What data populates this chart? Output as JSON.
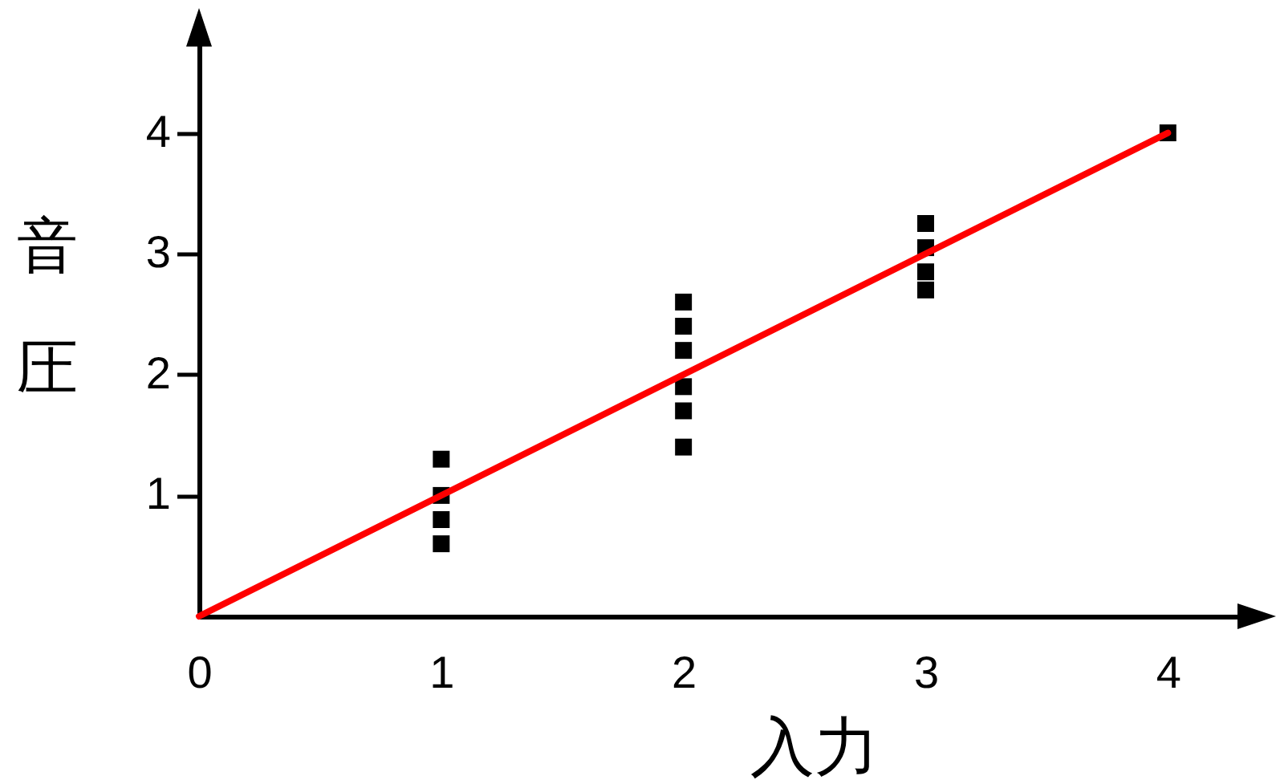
{
  "chart_data": {
    "type": "scatter",
    "xlabel": "入力",
    "ylabel": "音圧",
    "xlim": [
      0,
      4.38
    ],
    "ylim": [
      0,
      4.9
    ],
    "xticks": [
      0,
      1,
      2,
      3,
      4
    ],
    "yticks": [
      1,
      2,
      3,
      4
    ],
    "grid": false,
    "series": [
      {
        "color": "#000000",
        "marker": "square",
        "x": [
          1,
          1,
          1,
          1,
          2,
          2,
          2,
          2,
          2,
          2,
          3,
          3,
          3,
          3,
          4
        ],
        "values": [
          1.3,
          1.0,
          0.8,
          0.6,
          2.6,
          2.4,
          2.2,
          1.9,
          1.7,
          1.4,
          3.25,
          3.05,
          2.85,
          2.7,
          4.0
        ]
      },
      {
        "type": "line",
        "color": "#ff0000",
        "x": [
          0,
          4
        ],
        "values": [
          0,
          4
        ]
      }
    ]
  }
}
